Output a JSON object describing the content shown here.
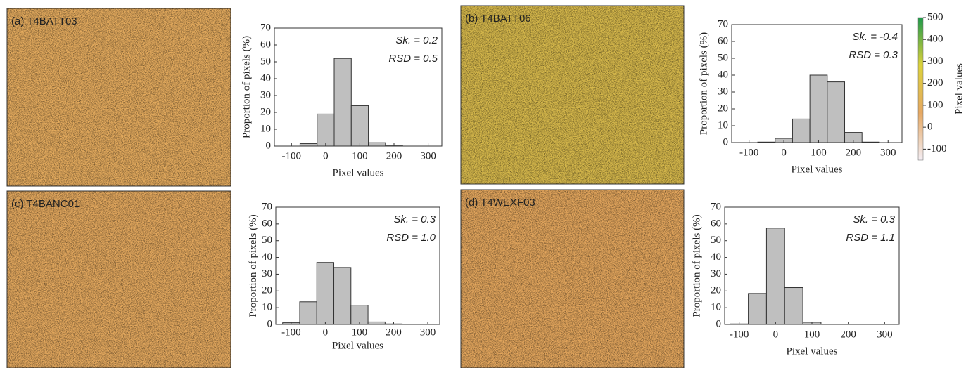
{
  "images": [
    {
      "label": "(a) T4BATT03",
      "color": "#e4ab5e",
      "speckle": "#d8d230"
    },
    {
      "label": "(b) T4BATT06",
      "color": "#d7b94c",
      "speckle": "#cfe030"
    },
    {
      "label": "(c) T4BANC01",
      "color": "#e3a85e",
      "speckle": "#d6cc3a"
    },
    {
      "label": "(d) T4WEXF03",
      "color": "#e3a65d",
      "speckle": "#e8c0b8"
    }
  ],
  "chart_data": [
    {
      "type": "histogram",
      "bins": [
        -75,
        -25,
        25,
        75,
        125,
        175,
        225
      ],
      "values": [
        1.5,
        19,
        52,
        24,
        2,
        0.5
      ],
      "color": "#bfbfbf",
      "xlim": [
        -150,
        340
      ],
      "xticks": [
        -100,
        0,
        100,
        200,
        300
      ],
      "ylim": [
        0,
        70
      ],
      "yticks": [
        0,
        10,
        20,
        30,
        40,
        50,
        60,
        70
      ],
      "xlabel": "Pixel values",
      "ylabel": "Proportion of pixels (%)",
      "annotations": [
        "Sk. = 0.2",
        "RSD = 0.5"
      ]
    },
    {
      "type": "histogram",
      "bins": [
        -75,
        -25,
        25,
        75,
        125,
        175,
        225,
        275
      ],
      "values": [
        0.3,
        2.5,
        14,
        40,
        36,
        6,
        0.3
      ],
      "color": "#bfbfbf",
      "xlim": [
        -150,
        340
      ],
      "xticks": [
        -100,
        0,
        100,
        200,
        300
      ],
      "ylim": [
        0,
        70
      ],
      "yticks": [
        0,
        10,
        20,
        30,
        40,
        50,
        60,
        70
      ],
      "xlabel": "Pixel values",
      "ylabel": "Proportion of pixels (%)",
      "annotations": [
        "Sk. = -0.4",
        "RSD = 0.3"
      ]
    },
    {
      "type": "histogram",
      "bins": [
        -125,
        -75,
        -25,
        25,
        75,
        125,
        175,
        225
      ],
      "values": [
        1,
        13.5,
        37,
        34,
        11.5,
        1.5,
        0.3
      ],
      "color": "#bfbfbf",
      "xlim": [
        -145,
        335
      ],
      "xticks": [
        -100,
        0,
        100,
        200,
        300
      ],
      "ylim": [
        0,
        70
      ],
      "yticks": [
        0,
        10,
        20,
        30,
        40,
        50,
        60,
        70
      ],
      "xlabel": "Pixel values",
      "ylabel": "Proportion of pixels (%)",
      "annotations": [
        "Sk. = 0.3",
        "RSD = 1.0"
      ]
    },
    {
      "type": "histogram",
      "bins": [
        -125,
        -75,
        -25,
        25,
        75,
        125
      ],
      "values": [
        0.3,
        18.5,
        57.5,
        22,
        1.3
      ],
      "color": "#bfbfbf",
      "xlim": [
        -140,
        340
      ],
      "xticks": [
        -100,
        0,
        100,
        200,
        300
      ],
      "ylim": [
        0,
        70
      ],
      "yticks": [
        0,
        10,
        20,
        30,
        40,
        50,
        60,
        70
      ],
      "xlabel": "Pixel values",
      "ylabel": "Proportion of pixels (%)",
      "annotations": [
        "Sk. = 0.3",
        "RSD = 1.1"
      ]
    },
    {
      "type": "colorbar",
      "ylim": [
        -150,
        500
      ],
      "yticks": [
        -100,
        0,
        100,
        200,
        300,
        400,
        500
      ],
      "colors": [
        "#f4eef4",
        "#e6a862",
        "#dcd23c",
        "#1f9a4a"
      ],
      "ylabel": "Pixel values"
    }
  ]
}
